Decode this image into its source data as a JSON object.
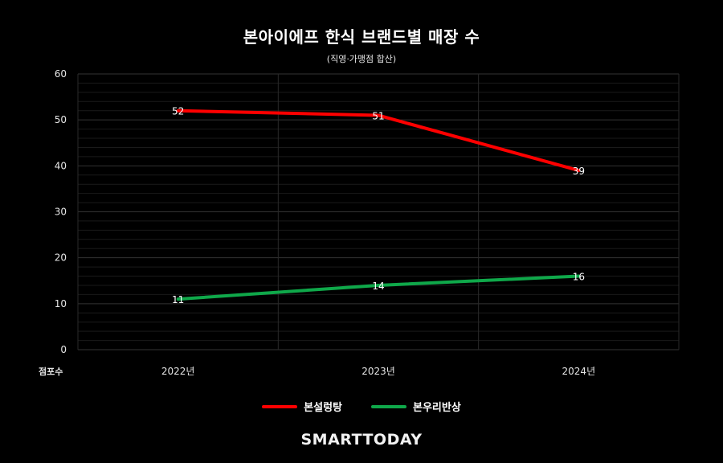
{
  "chart_data": {
    "type": "line",
    "title": "본아이에프 한식 브랜드별 매장 수",
    "subtitle": "(직영·가맹점 합산)",
    "ylabel": "점포수",
    "xlabel": "",
    "categories": [
      "2022년",
      "2023년",
      "2024년"
    ],
    "ylim": [
      0,
      60
    ],
    "yticks": [
      0,
      10,
      20,
      30,
      40,
      50,
      60
    ],
    "grid": true,
    "legend_position": "bottom",
    "series": [
      {
        "name": "본설렁탕",
        "values": [
          52,
          51,
          39
        ],
        "color": "#ff0000"
      },
      {
        "name": "본우리반상",
        "values": [
          11,
          14,
          16
        ],
        "color": "#0fa84a"
      }
    ]
  },
  "brand": "SMARTTODAY"
}
